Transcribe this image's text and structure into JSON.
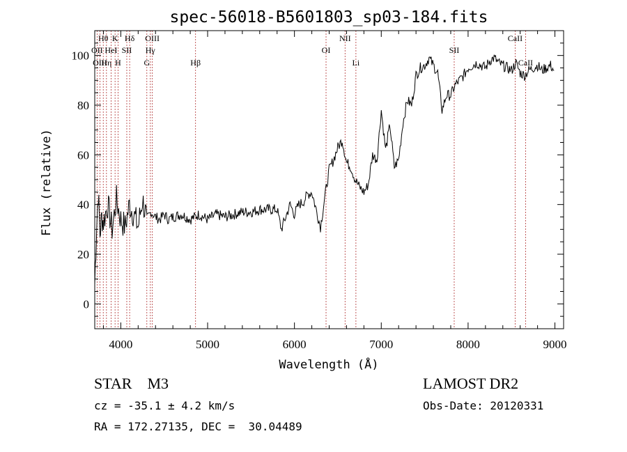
{
  "chart_data": {
    "type": "line",
    "title": "spec-56018-B5601803_sp03-184.fits",
    "xlabel": "Wavelength (Å)",
    "ylabel": "Flux (relative)",
    "xlim": [
      3700,
      9100
    ],
    "ylim": [
      -10,
      110
    ],
    "xticks": [
      4000,
      5000,
      6000,
      7000,
      8000,
      9000
    ],
    "yticks": [
      0,
      20,
      40,
      60,
      80,
      100
    ],
    "grid": false,
    "series": [
      {
        "name": "",
        "x": [
          3700,
          3720,
          3740,
          3760,
          3780,
          3800,
          3850,
          3900,
          3950,
          4000,
          4050,
          4100,
          4150,
          4200,
          4250,
          4300,
          4350,
          4400,
          4450,
          4500,
          4550,
          4600,
          4700,
          4800,
          4900,
          5000,
          5100,
          5200,
          5300,
          5400,
          5500,
          5600,
          5700,
          5800,
          5850,
          5900,
          5950,
          6000,
          6050,
          6100,
          6150,
          6200,
          6250,
          6300,
          6350,
          6400,
          6450,
          6500,
          6550,
          6600,
          6650,
          6700,
          6750,
          6800,
          6850,
          6900,
          6950,
          7000,
          7050,
          7100,
          7150,
          7200,
          7250,
          7300,
          7350,
          7400,
          7450,
          7500,
          7550,
          7600,
          7650,
          7700,
          7750,
          7800,
          7850,
          7900,
          7950,
          8000,
          8050,
          8100,
          8150,
          8200,
          8250,
          8300,
          8350,
          8400,
          8450,
          8500,
          8550,
          8600,
          8650,
          8700,
          8750,
          8800,
          8850,
          8900,
          8950,
          8990
        ],
        "y": [
          8,
          30,
          45,
          28,
          35,
          33,
          40,
          30,
          42,
          34,
          31,
          40,
          36,
          31,
          42,
          34,
          37,
          35,
          34,
          36,
          34,
          35,
          36,
          34,
          36,
          34,
          36,
          35,
          36,
          37,
          37,
          38,
          38,
          38,
          30,
          35,
          40,
          36,
          40,
          41,
          44,
          45,
          38,
          31,
          43,
          54,
          58,
          63,
          66,
          57,
          55,
          50,
          47,
          45,
          48,
          60,
          58,
          78,
          62,
          72,
          55,
          58,
          73,
          82,
          80,
          92,
          95,
          96,
          99,
          96,
          93,
          78,
          84,
          84,
          88,
          90,
          92,
          95,
          96,
          97,
          96,
          95,
          98,
          99,
          97,
          96,
          95,
          94,
          97,
          93,
          92,
          94,
          95,
          96,
          94,
          95,
          96,
          94
        ]
      }
    ],
    "lines": [
      {
        "label": "Hθ",
        "x": 3798,
        "row": 0
      },
      {
        "label": "OII",
        "x": 3727,
        "row": 1
      },
      {
        "label": "OIII",
        "x": 3760,
        "row": 2
      },
      {
        "label": "Hη",
        "x": 3835,
        "row": 2
      },
      {
        "label": "HeI",
        "x": 3888,
        "row": 1
      },
      {
        "label": "K",
        "x": 3934,
        "row": 0
      },
      {
        "label": "H",
        "x": 3968,
        "row": 2
      },
      {
        "label": "SII",
        "x": 4069,
        "row": 1
      },
      {
        "label": "Hδ",
        "x": 4102,
        "row": 0
      },
      {
        "label": "G",
        "x": 4300,
        "row": 2
      },
      {
        "label": "OIII",
        "x": 4363,
        "row": 0
      },
      {
        "label": "Hγ",
        "x": 4340,
        "row": 1
      },
      {
        "label": "Hβ",
        "x": 4861,
        "row": 2
      },
      {
        "label": "OI",
        "x": 6364,
        "row": 1
      },
      {
        "label": "NII",
        "x": 6583,
        "row": 0
      },
      {
        "label": "Li",
        "x": 6708,
        "row": 2
      },
      {
        "label": "SII",
        "x": 7840,
        "row": 1
      },
      {
        "label": "CaII",
        "x": 8542,
        "row": 0
      },
      {
        "label": "CaII",
        "x": 8662,
        "row": 2
      }
    ]
  },
  "info": {
    "object_class": "STAR    M3",
    "survey": "LAMOST DR2",
    "cz": "cz = -35.1 ± 4.2 km/s",
    "obs_date": "Obs-Date: 20120331",
    "radec": "RA = 172.27135, DEC =  30.04489"
  }
}
